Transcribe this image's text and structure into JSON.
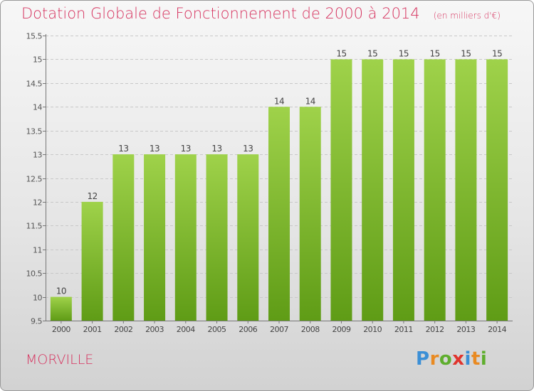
{
  "title": "Dotation Globale de Fonctionnement de 2000 à 2014",
  "unit": "(en milliers d'€)",
  "commune": "MORVILLE",
  "brand": [
    "P",
    "r",
    "o",
    "x",
    "i",
    "t",
    "i"
  ],
  "colors": {
    "title": "#d6335f",
    "bar_top": "#9fd24a",
    "bar_bottom": "#5f9c16"
  },
  "chart_data": {
    "type": "bar",
    "title": "Dotation Globale de Fonctionnement de 2000 à 2014",
    "subtitle": "(en milliers d'€)",
    "xlabel": "",
    "ylabel": "",
    "categories": [
      "2000",
      "2001",
      "2002",
      "2003",
      "2004",
      "2005",
      "2006",
      "2007",
      "2008",
      "2009",
      "2010",
      "2011",
      "2012",
      "2013",
      "2014"
    ],
    "values": [
      10,
      12,
      13,
      13,
      13,
      13,
      13,
      14,
      14,
      15,
      15,
      15,
      15,
      15,
      15
    ],
    "value_labels": [
      "10",
      "12",
      "13",
      "13",
      "13",
      "13",
      "13",
      "14",
      "14",
      "15",
      "15",
      "15",
      "15",
      "15",
      "15"
    ],
    "ylim": [
      9.5,
      15.5
    ],
    "yticks": [
      9.5,
      10,
      10.5,
      11,
      11.5,
      12,
      12.5,
      13,
      13.5,
      14,
      14.5,
      15,
      15.5
    ],
    "ytick_labels": [
      "9.5",
      "10",
      "10.5",
      "11",
      "11.5",
      "12",
      "12.5",
      "13",
      "13.5",
      "14",
      "14.5",
      "15",
      "15.5"
    ],
    "grid": true,
    "legend": "none"
  }
}
